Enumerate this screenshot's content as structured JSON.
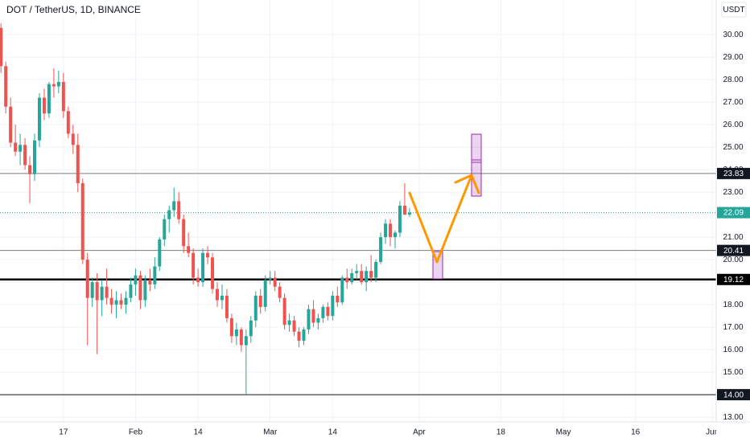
{
  "chart_data": {
    "type": "candlestick",
    "title": "DOT / TetherUS, 1D, BINANCE",
    "currency": "USDT",
    "up_color": "#26a69a",
    "down_color": "#ef5350",
    "grid": true,
    "xlim": [
      3.8,
      152.8
    ],
    "xticks": [
      17,
      {
        "value": 32,
        "label": "Feb"
      },
      {
        "value": 45,
        "label": "14"
      },
      {
        "value": 60,
        "label": "Mar"
      },
      {
        "value": 73,
        "label": "14"
      },
      {
        "value": 91,
        "label": "Apr"
      },
      {
        "value": 108,
        "label": "18"
      },
      {
        "value": 121,
        "label": "May"
      },
      {
        "value": 136,
        "label": "16"
      },
      {
        "value": 152,
        "label": "Jun"
      }
    ],
    "ylim": [
      12.79,
      31.54
    ],
    "yticks": [
      {
        "value": 13,
        "label": "13.00"
      },
      {
        "value": 14,
        "label": "14.00"
      },
      {
        "value": 15,
        "label": "15.00"
      },
      {
        "value": 16,
        "label": "16.00"
      },
      {
        "value": 17,
        "label": "17.00"
      },
      {
        "value": 18,
        "label": "18.00"
      },
      {
        "value": 19,
        "label": "19.00"
      },
      {
        "value": 20,
        "label": "20.00"
      },
      {
        "value": 21,
        "label": "21.00"
      },
      {
        "value": 22,
        "label": "22.00"
      },
      {
        "value": 23,
        "label": "23.00"
      },
      {
        "value": 24,
        "label": "24.00"
      },
      {
        "value": 25,
        "label": "25.00"
      },
      {
        "value": 26,
        "label": "26.00"
      },
      {
        "value": 27,
        "label": "27.00"
      },
      {
        "value": 28,
        "label": "28.00"
      },
      {
        "value": 29,
        "label": "29.00"
      },
      {
        "value": 30,
        "label": "30.00"
      }
    ],
    "horizontal_lines": [
      {
        "level": 23.83,
        "color": "#787b86",
        "bold": false
      },
      {
        "level": 20.41,
        "color": "#787b86",
        "bold": false
      },
      {
        "level": 19.12,
        "color": "#000000",
        "bold": true
      },
      {
        "level": {
          "value": 14,
          "label": "14.00"
        },
        "color": "#131722",
        "bold": false
      }
    ],
    "last_price": 22.09,
    "x": [
      4,
      5,
      6,
      7,
      8,
      9,
      10,
      11,
      12,
      13,
      14,
      15,
      16,
      17,
      18,
      19,
      20,
      21,
      22,
      23,
      24,
      25,
      26,
      27,
      28,
      29,
      30,
      31,
      32,
      33,
      34,
      35,
      36,
      37,
      38,
      39,
      40,
      41,
      42,
      43,
      44,
      45,
      46,
      47,
      48,
      49,
      50,
      51,
      52,
      53,
      54,
      55,
      56,
      57,
      58,
      59,
      60,
      61,
      62,
      63,
      64,
      65,
      66,
      67,
      68,
      69,
      70,
      71,
      72,
      73,
      74,
      75,
      76,
      77,
      78,
      79,
      80,
      81,
      82,
      83,
      84,
      85,
      86,
      87,
      88,
      89
    ],
    "open": [
      30.3,
      28.6,
      26.8,
      25.2,
      24.8,
      25.1,
      24.2,
      23.8,
      25.3,
      27.2,
      26.5,
      27.8,
      27.7,
      27.9,
      26.6,
      25.6,
      25.1,
      23.4,
      20.0,
      18.3,
      19.0,
      18.2,
      18.8,
      18.3,
      18.0,
      18.2,
      18.0,
      18.3,
      18.9,
      19.3,
      18.2,
      19.1,
      18.9,
      19.7,
      20.9,
      21.8,
      22.2,
      22.6,
      21.8,
      20.6,
      20.3,
      19.2,
      19.0,
      20.3,
      20.1,
      18.7,
      18.2,
      18.4,
      17.4,
      16.6,
      16.9,
      16.2,
      16.6,
      17.3,
      18.4,
      17.9,
      19.1,
      19.2,
      18.8,
      18.3,
      17.1,
      17.3,
      16.8,
      16.4,
      16.9,
      17.8,
      17.2,
      17.4,
      17.9,
      17.5,
      18.4,
      18.1,
      19.2,
      19.0,
      19.4,
      19.5,
      19.0,
      19.5,
      19.2,
      19.9,
      21.0,
      21.6,
      21.0,
      21.2,
      22.4,
      22.0
    ],
    "high": [
      30.5,
      28.8,
      27.2,
      26.0,
      25.6,
      25.4,
      24.6,
      25.6,
      27.4,
      27.6,
      27.9,
      28.5,
      28.4,
      28.3,
      26.8,
      26.0,
      25.6,
      23.6,
      20.3,
      19.2,
      19.4,
      19.1,
      19.6,
      18.7,
      18.6,
      18.5,
      18.6,
      19.2,
      19.6,
      19.5,
      19.3,
      19.6,
      20.1,
      21.0,
      22.0,
      22.4,
      23.2,
      23.0,
      22.0,
      21.2,
      20.5,
      19.6,
      20.5,
      20.6,
      20.3,
      19.0,
      18.9,
      18.7,
      17.6,
      17.2,
      17.0,
      16.9,
      17.5,
      18.6,
      18.7,
      19.3,
      19.5,
      19.5,
      19.0,
      18.5,
      17.6,
      17.5,
      17.0,
      17.0,
      18.0,
      18.2,
      17.6,
      18.0,
      18.1,
      18.6,
      18.8,
      19.3,
      19.6,
      19.6,
      19.8,
      19.8,
      19.7,
      20.2,
      20.0,
      21.2,
      21.8,
      21.8,
      21.3,
      22.6,
      23.4,
      22.3
    ],
    "low": [
      28.3,
      26.5,
      25.0,
      24.6,
      24.2,
      24.0,
      22.5,
      23.5,
      25.0,
      26.2,
      26.3,
      27.2,
      27.4,
      26.3,
      25.4,
      24.7,
      23.0,
      19.8,
      16.2,
      17.9,
      15.8,
      17.5,
      18.0,
      17.6,
      17.4,
      17.8,
      17.6,
      18.1,
      18.4,
      17.8,
      17.9,
      18.6,
      18.7,
      19.5,
      20.6,
      21.2,
      21.9,
      21.6,
      20.3,
      20.1,
      18.9,
      18.8,
      18.8,
      19.8,
      18.5,
      17.9,
      17.8,
      17.2,
      16.3,
      16.2,
      15.9,
      14.0,
      16.3,
      17.0,
      17.6,
      17.7,
      18.9,
      18.6,
      18.1,
      16.9,
      16.8,
      16.6,
      16.1,
      16.2,
      16.7,
      17.0,
      16.9,
      17.2,
      17.3,
      17.3,
      17.9,
      18.0,
      18.7,
      18.9,
      19.1,
      18.9,
      18.6,
      19.0,
      19.0,
      19.8,
      20.7,
      20.6,
      20.5,
      21.0,
      22.0,
      21.9
    ],
    "close": [
      28.6,
      26.8,
      25.2,
      24.8,
      25.1,
      24.2,
      23.8,
      25.3,
      27.2,
      26.5,
      27.8,
      27.7,
      27.9,
      26.6,
      25.6,
      25.1,
      23.4,
      20.0,
      18.3,
      19.0,
      18.2,
      18.8,
      18.3,
      18.0,
      18.2,
      18.0,
      18.3,
      18.9,
      19.3,
      18.2,
      19.1,
      18.9,
      19.7,
      20.9,
      21.8,
      22.2,
      22.6,
      21.8,
      20.6,
      20.3,
      19.2,
      19.0,
      20.3,
      20.1,
      18.7,
      18.2,
      18.4,
      17.4,
      16.6,
      16.9,
      16.2,
      16.6,
      17.3,
      18.4,
      17.9,
      19.1,
      19.2,
      18.8,
      18.3,
      17.1,
      17.3,
      16.8,
      16.4,
      16.9,
      17.8,
      17.2,
      17.4,
      17.9,
      17.5,
      18.4,
      18.1,
      19.2,
      19.0,
      19.4,
      19.5,
      19.0,
      19.5,
      19.2,
      19.9,
      21.0,
      21.6,
      21.0,
      21.2,
      22.4,
      22.0,
      22.09
    ]
  }
}
